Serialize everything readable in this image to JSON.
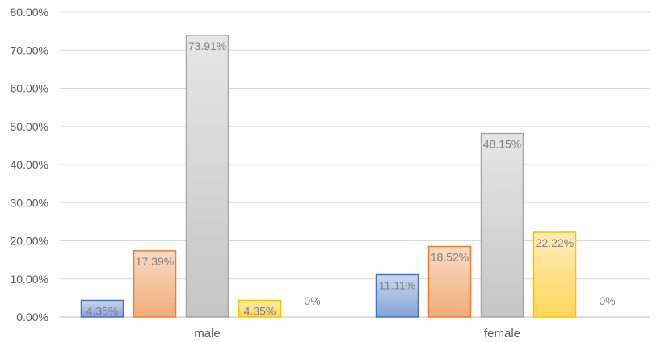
{
  "chart_data": {
    "type": "bar",
    "categories": [
      "male",
      "female"
    ],
    "series": [
      {
        "values": [
          4.35,
          11.11
        ],
        "labels": [
          "4.35%",
          "11.11%"
        ],
        "color": "#4472c4"
      },
      {
        "values": [
          17.39,
          18.52
        ],
        "labels": [
          "17.39%",
          "18.52%"
        ],
        "color": "#ed7d31"
      },
      {
        "values": [
          73.91,
          48.15
        ],
        "labels": [
          "73.91%",
          "48.15%"
        ],
        "color": "#a5a5a5"
      },
      {
        "values": [
          4.35,
          22.22
        ],
        "labels": [
          "4.35%",
          "22.22%"
        ],
        "color": "#ffc000"
      },
      {
        "values": [
          0,
          0
        ],
        "labels": [
          "0%",
          "0%"
        ],
        "color": "#5b9bd5"
      }
    ],
    "y_ticks": [
      "0.00%",
      "10.00%",
      "20.00%",
      "30.00%",
      "40.00%",
      "50.00%",
      "60.00%",
      "70.00%",
      "80.00%"
    ],
    "ylim": [
      0,
      80
    ],
    "grid": true,
    "legend": "none",
    "title": "",
    "xlabel": "",
    "ylabel": ""
  }
}
